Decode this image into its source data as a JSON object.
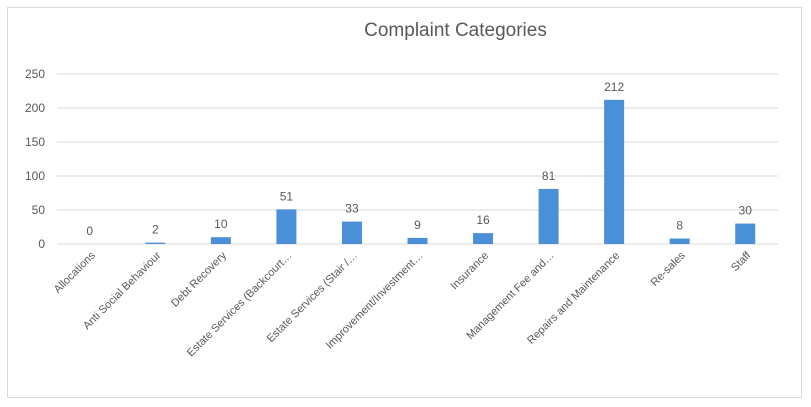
{
  "chart_data": {
    "type": "bar",
    "title": "Complaint Categories",
    "categories": [
      "Allocations",
      "Anti Social Behaviour",
      "Debt Recovery",
      "Estate Services (Backcourt…",
      "Estate Services (Stair /…",
      "Improvement/Investment…",
      "Insurance",
      "Management Fee and…",
      "Repairs and Maintenance",
      "Re-sales",
      "Staff"
    ],
    "values": [
      0,
      2,
      10,
      51,
      33,
      9,
      16,
      81,
      212,
      8,
      30
    ],
    "xlabel": "",
    "ylabel": "",
    "ylim": [
      0,
      250
    ],
    "yticks": [
      0,
      50,
      100,
      150,
      200,
      250
    ],
    "grid": true,
    "legend": "none",
    "bar_color": "#4a90d9",
    "gridline_color": "#d9d9d9"
  }
}
